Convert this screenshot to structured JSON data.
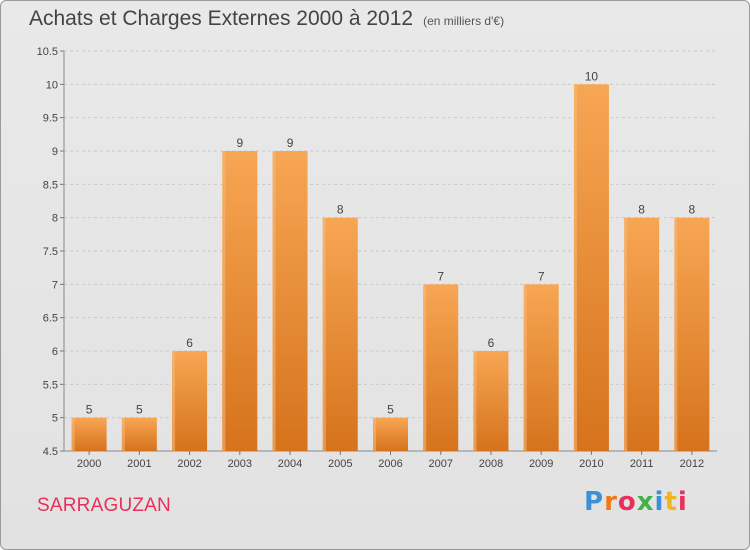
{
  "chart_data": {
    "type": "bar",
    "title": "Achats et Charges Externes 2000 à 2012",
    "subtitle": "(en milliers d'€)",
    "categories": [
      "2000",
      "2001",
      "2002",
      "2003",
      "2004",
      "2005",
      "2006",
      "2007",
      "2008",
      "2009",
      "2010",
      "2011",
      "2012"
    ],
    "values": [
      5,
      5,
      6,
      9,
      9,
      8,
      5,
      7,
      6,
      7,
      10,
      8,
      8
    ],
    "data_labels": [
      "5",
      "5",
      "6",
      "9",
      "9",
      "8",
      "5",
      "7",
      "6",
      "7",
      "10",
      "8",
      "8"
    ],
    "ylim": [
      4.5,
      10.5
    ],
    "y_ticks": [
      "4.5",
      "5",
      "5.5",
      "6",
      "6.5",
      "7",
      "7.5",
      "8",
      "8.5",
      "9",
      "9.5",
      "10",
      "10.5"
    ],
    "grid": true,
    "bar_color": "#f2994a"
  },
  "location": "SARRAGUZAN",
  "logo": {
    "text": "Proxiti",
    "letter_colors": [
      "#3d8fd6",
      "#f07a1a",
      "#e8305a",
      "#44b04a",
      "#3d8fd6",
      "#f2b320",
      "#e8305a"
    ]
  }
}
